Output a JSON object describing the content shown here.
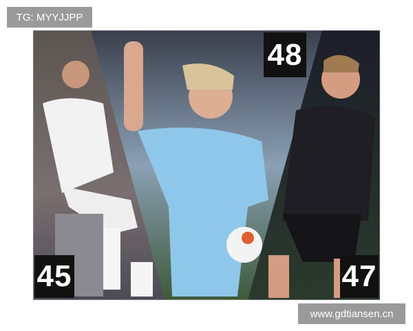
{
  "watermark_top": "TG: MYYJJPP",
  "watermark_bottom": "www.gdtiansen.cn",
  "panels": [
    {
      "number": 45
    },
    {
      "number": 48
    },
    {
      "number": 47
    }
  ]
}
